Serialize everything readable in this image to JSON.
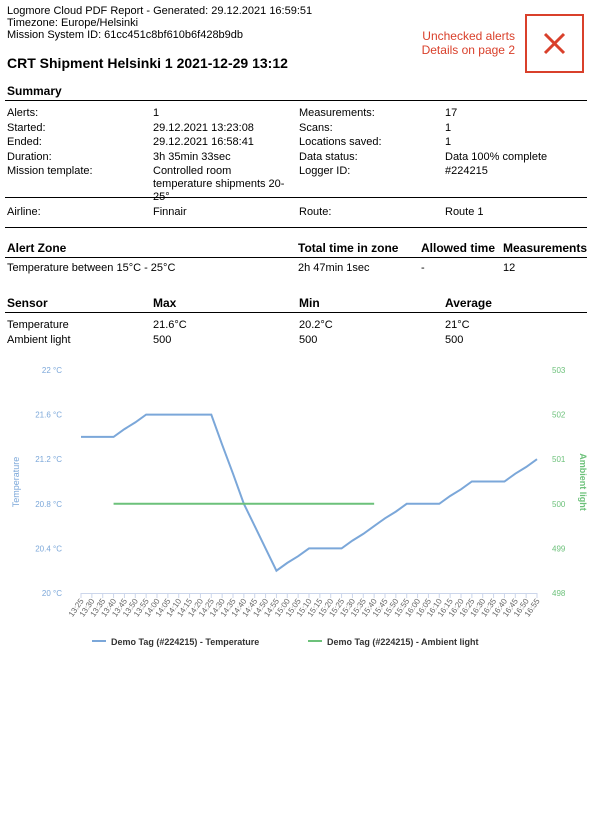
{
  "header": {
    "report_line": "Logmore Cloud PDF Report - Generated: 29.12.2021 16:59:51",
    "timezone": "Timezone: Europe/Helsinki",
    "mission_id": "Mission System ID: 61cc451c8bf610b6f428b9db",
    "title": "CRT Shipment Helsinki 1 2021-12-29 13:12",
    "alert_lines": [
      "Unchecked alerts",
      "Details on page 2"
    ]
  },
  "summary": {
    "heading": "Summary",
    "rows": [
      [
        "Alerts:",
        "1",
        "Measurements:",
        "17"
      ],
      [
        "Started:",
        "29.12.2021 13:23:08",
        "Scans:",
        "1"
      ],
      [
        "Ended:",
        "29.12.2021 16:58:41",
        "Locations saved:",
        "1"
      ],
      [
        "Duration:",
        "3h 35min 33sec",
        "Data status:",
        "Data 100% complete"
      ],
      [
        "Mission template:",
        "Controlled room temperature shipments 20-25°",
        "Logger ID:",
        "#224215"
      ]
    ],
    "extra_row": [
      "Airline:",
      "Finnair",
      "Route:",
      "Route 1"
    ]
  },
  "alert_zone": {
    "headers": [
      "Alert Zone",
      "Total time in zone",
      "Allowed time",
      "Measurements"
    ],
    "rows": [
      [
        "Temperature between 15°C - 25°C",
        "2h 47min 1sec",
        "-",
        "12"
      ]
    ]
  },
  "sensor": {
    "headers": [
      "Sensor",
      "Max",
      "Min",
      "Average"
    ],
    "rows": [
      [
        "Temperature",
        "21.6°C",
        "20.2°C",
        "21°C"
      ],
      [
        "Ambient light",
        "500",
        "500",
        "500"
      ]
    ]
  },
  "chart_data": {
    "type": "line",
    "categories": [
      "13:25",
      "13:30",
      "13:35",
      "13:40",
      "13:45",
      "13:50",
      "13:55",
      "14:00",
      "14:05",
      "14:10",
      "14:15",
      "14:20",
      "14:25",
      "14:30",
      "14:35",
      "14:40",
      "14:45",
      "14:50",
      "14:55",
      "15:00",
      "15:05",
      "15:10",
      "15:15",
      "15:20",
      "15:25",
      "15:30",
      "15:35",
      "15:40",
      "15:45",
      "15:50",
      "15:55",
      "16:00",
      "16:05",
      "16:10",
      "16:15",
      "16:20",
      "16:25",
      "16:30",
      "16:35",
      "16:40",
      "16:45",
      "16:50",
      "16:55"
    ],
    "series": [
      {
        "name": "Demo Tag (#224215) - Temperature",
        "color": "#7ba7d9",
        "values": [
          21.4,
          21.4,
          21.4,
          21.4,
          21.47,
          21.53,
          21.6,
          21.6,
          21.6,
          21.6,
          21.6,
          21.6,
          21.6,
          21.33,
          21.07,
          20.8,
          20.6,
          20.4,
          20.2,
          20.27,
          20.33,
          20.4,
          20.4,
          20.4,
          20.4,
          20.47,
          20.53,
          20.6,
          20.67,
          20.73,
          20.8,
          20.8,
          20.8,
          20.8,
          20.87,
          20.93,
          21.0,
          21.0,
          21.0,
          21.0,
          21.07,
          21.13,
          21.2
        ]
      },
      {
        "name": "Demo Tag (#224215) - Ambient light",
        "color": "#6cc17a",
        "axis": "y2",
        "values": [
          null,
          null,
          null,
          500,
          500,
          500,
          500,
          500,
          500,
          500,
          500,
          500,
          500,
          500,
          500,
          500,
          500,
          500,
          500,
          500,
          500,
          500,
          500,
          500,
          500,
          500,
          500,
          500,
          null,
          null,
          null,
          null,
          null,
          null,
          null,
          null,
          null,
          null,
          null,
          null,
          null,
          null,
          null
        ]
      }
    ],
    "ylabel": "Temperature",
    "y2label": "Ambient light",
    "ylim": [
      20,
      22
    ],
    "yticks": [
      {
        "value": 20,
        "label": "20 °C"
      },
      {
        "value": 20.4,
        "label": "20.4 °C"
      },
      {
        "value": 20.8,
        "label": "20.8 °C"
      },
      {
        "value": 21.2,
        "label": "21.2 °C"
      },
      {
        "value": 21.6,
        "label": "21.6 °C"
      },
      {
        "value": 22,
        "label": "22 °C"
      }
    ],
    "y2lim": [
      498,
      503
    ],
    "y2ticks": [
      498,
      499,
      500,
      501,
      502,
      503
    ]
  }
}
